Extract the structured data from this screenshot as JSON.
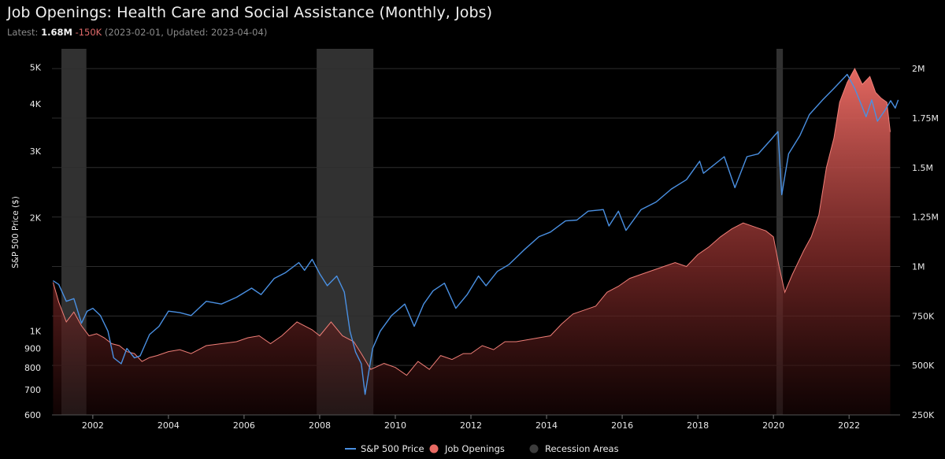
{
  "header": {
    "title": "Job Openings: Health Care and Social Assistance (Monthly, Jobs)",
    "latest_prefix": "Latest: ",
    "latest_value": "1.68M",
    "latest_change": "-150K",
    "latest_dates": "(2023-02-01, Updated: 2023-04-04)"
  },
  "colors": {
    "background": "#000000",
    "sp500_line": "#4a90e2",
    "job_openings_fill_top": "#e86a63",
    "job_openings_line": "#f07f78",
    "recession": "#3a3a3a",
    "grid": "#2e2e2e"
  },
  "chart_data": {
    "type": "line",
    "title": "Job Openings: Health Care and Social Assistance (Monthly, Jobs)",
    "x_ticks": [
      "2002",
      "2004",
      "2006",
      "2008",
      "2010",
      "2012",
      "2014",
      "2016",
      "2018",
      "2020",
      "2022"
    ],
    "xlim": [
      2000.92,
      2023.35
    ],
    "left_axis": {
      "label": "S&P 500 Price ($)",
      "scale": "log",
      "ylim": [
        600,
        5600
      ],
      "ticks": [
        600,
        700,
        800,
        900,
        1000,
        2000,
        3000,
        4000,
        5000
      ],
      "tick_labels": [
        "600",
        "700",
        "800",
        "900",
        "1K",
        "2K",
        "3K",
        "4K",
        "5K"
      ]
    },
    "right_axis": {
      "label": "",
      "scale": "linear",
      "ylim": [
        250000,
        2100000
      ],
      "ticks": [
        250000,
        500000,
        750000,
        1000000,
        1250000,
        1500000,
        1750000,
        2000000
      ],
      "tick_labels": [
        "250K",
        "500K",
        "750K",
        "1M",
        "1.25M",
        "1.5M",
        "1.75M",
        "2M"
      ]
    },
    "recessions": [
      [
        2001.17,
        2001.83
      ],
      [
        2007.92,
        2009.42
      ],
      [
        2020.08,
        2020.25
      ]
    ],
    "series": [
      {
        "name": "S&P 500 Price",
        "type": "line",
        "axis": "left",
        "points": [
          [
            2000.95,
            1360
          ],
          [
            2001.1,
            1330
          ],
          [
            2001.3,
            1200
          ],
          [
            2001.5,
            1220
          ],
          [
            2001.7,
            1050
          ],
          [
            2001.85,
            1130
          ],
          [
            2002.0,
            1150
          ],
          [
            2002.2,
            1100
          ],
          [
            2002.4,
            1000
          ],
          [
            2002.55,
            850
          ],
          [
            2002.75,
            820
          ],
          [
            2002.9,
            900
          ],
          [
            2003.1,
            850
          ],
          [
            2003.25,
            860
          ],
          [
            2003.5,
            980
          ],
          [
            2003.75,
            1030
          ],
          [
            2004.0,
            1130
          ],
          [
            2004.3,
            1120
          ],
          [
            2004.6,
            1100
          ],
          [
            2005.0,
            1200
          ],
          [
            2005.4,
            1180
          ],
          [
            2005.8,
            1230
          ],
          [
            2006.2,
            1300
          ],
          [
            2006.45,
            1250
          ],
          [
            2006.8,
            1380
          ],
          [
            2007.1,
            1430
          ],
          [
            2007.45,
            1520
          ],
          [
            2007.6,
            1450
          ],
          [
            2007.8,
            1550
          ],
          [
            2008.0,
            1420
          ],
          [
            2008.2,
            1320
          ],
          [
            2008.45,
            1400
          ],
          [
            2008.65,
            1270
          ],
          [
            2008.8,
            1000
          ],
          [
            2008.95,
            880
          ],
          [
            2009.1,
            820
          ],
          [
            2009.2,
            680
          ],
          [
            2009.4,
            900
          ],
          [
            2009.6,
            1000
          ],
          [
            2009.9,
            1100
          ],
          [
            2010.25,
            1180
          ],
          [
            2010.5,
            1030
          ],
          [
            2010.75,
            1180
          ],
          [
            2011.0,
            1280
          ],
          [
            2011.3,
            1340
          ],
          [
            2011.6,
            1150
          ],
          [
            2011.9,
            1250
          ],
          [
            2012.2,
            1400
          ],
          [
            2012.4,
            1320
          ],
          [
            2012.7,
            1440
          ],
          [
            2013.0,
            1500
          ],
          [
            2013.4,
            1640
          ],
          [
            2013.8,
            1780
          ],
          [
            2014.1,
            1830
          ],
          [
            2014.5,
            1960
          ],
          [
            2014.8,
            1970
          ],
          [
            2015.1,
            2080
          ],
          [
            2015.5,
            2100
          ],
          [
            2015.65,
            1900
          ],
          [
            2015.9,
            2080
          ],
          [
            2016.1,
            1850
          ],
          [
            2016.5,
            2100
          ],
          [
            2016.9,
            2200
          ],
          [
            2017.3,
            2380
          ],
          [
            2017.7,
            2520
          ],
          [
            2018.05,
            2820
          ],
          [
            2018.15,
            2620
          ],
          [
            2018.7,
            2900
          ],
          [
            2018.98,
            2400
          ],
          [
            2019.3,
            2900
          ],
          [
            2019.6,
            2950
          ],
          [
            2019.95,
            3230
          ],
          [
            2020.12,
            3380
          ],
          [
            2020.22,
            2300
          ],
          [
            2020.4,
            2950
          ],
          [
            2020.7,
            3300
          ],
          [
            2020.95,
            3750
          ],
          [
            2021.3,
            4100
          ],
          [
            2021.6,
            4400
          ],
          [
            2021.95,
            4790
          ],
          [
            2022.15,
            4400
          ],
          [
            2022.45,
            3700
          ],
          [
            2022.6,
            4100
          ],
          [
            2022.75,
            3600
          ],
          [
            2022.95,
            3850
          ],
          [
            2023.1,
            4080
          ],
          [
            2023.22,
            3900
          ],
          [
            2023.3,
            4100
          ]
        ]
      },
      {
        "name": "Job Openings",
        "type": "area",
        "axis": "right",
        "points": [
          [
            2000.95,
            920000
          ],
          [
            2001.1,
            820000
          ],
          [
            2001.3,
            720000
          ],
          [
            2001.5,
            770000
          ],
          [
            2001.7,
            700000
          ],
          [
            2001.9,
            650000
          ],
          [
            2002.1,
            660000
          ],
          [
            2002.3,
            640000
          ],
          [
            2002.5,
            610000
          ],
          [
            2002.7,
            600000
          ],
          [
            2002.9,
            570000
          ],
          [
            2003.1,
            560000
          ],
          [
            2003.3,
            520000
          ],
          [
            2003.5,
            540000
          ],
          [
            2003.7,
            550000
          ],
          [
            2004.0,
            570000
          ],
          [
            2004.3,
            580000
          ],
          [
            2004.6,
            560000
          ],
          [
            2005.0,
            600000
          ],
          [
            2005.4,
            610000
          ],
          [
            2005.8,
            620000
          ],
          [
            2006.1,
            640000
          ],
          [
            2006.4,
            650000
          ],
          [
            2006.7,
            610000
          ],
          [
            2007.0,
            650000
          ],
          [
            2007.4,
            720000
          ],
          [
            2007.8,
            680000
          ],
          [
            2008.0,
            650000
          ],
          [
            2008.3,
            720000
          ],
          [
            2008.6,
            650000
          ],
          [
            2008.9,
            620000
          ],
          [
            2009.1,
            560000
          ],
          [
            2009.35,
            480000
          ],
          [
            2009.7,
            510000
          ],
          [
            2010.0,
            490000
          ],
          [
            2010.3,
            450000
          ],
          [
            2010.6,
            520000
          ],
          [
            2010.9,
            480000
          ],
          [
            2011.2,
            550000
          ],
          [
            2011.5,
            530000
          ],
          [
            2011.8,
            560000
          ],
          [
            2012.0,
            560000
          ],
          [
            2012.3,
            600000
          ],
          [
            2012.6,
            580000
          ],
          [
            2012.9,
            620000
          ],
          [
            2013.2,
            620000
          ],
          [
            2013.5,
            630000
          ],
          [
            2013.8,
            640000
          ],
          [
            2014.1,
            650000
          ],
          [
            2014.4,
            710000
          ],
          [
            2014.7,
            760000
          ],
          [
            2015.0,
            780000
          ],
          [
            2015.3,
            800000
          ],
          [
            2015.6,
            870000
          ],
          [
            2015.9,
            900000
          ],
          [
            2016.2,
            940000
          ],
          [
            2016.5,
            960000
          ],
          [
            2016.8,
            980000
          ],
          [
            2017.1,
            1000000
          ],
          [
            2017.4,
            1020000
          ],
          [
            2017.7,
            1000000
          ],
          [
            2018.0,
            1060000
          ],
          [
            2018.3,
            1100000
          ],
          [
            2018.6,
            1150000
          ],
          [
            2018.9,
            1190000
          ],
          [
            2019.2,
            1220000
          ],
          [
            2019.5,
            1200000
          ],
          [
            2019.8,
            1180000
          ],
          [
            2020.0,
            1150000
          ],
          [
            2020.15,
            1000000
          ],
          [
            2020.3,
            870000
          ],
          [
            2020.5,
            960000
          ],
          [
            2020.8,
            1080000
          ],
          [
            2021.0,
            1150000
          ],
          [
            2021.2,
            1260000
          ],
          [
            2021.4,
            1500000
          ],
          [
            2021.6,
            1650000
          ],
          [
            2021.75,
            1830000
          ],
          [
            2021.95,
            1930000
          ],
          [
            2022.15,
            2000000
          ],
          [
            2022.35,
            1920000
          ],
          [
            2022.55,
            1960000
          ],
          [
            2022.7,
            1880000
          ],
          [
            2022.85,
            1850000
          ],
          [
            2023.0,
            1830000
          ],
          [
            2023.09,
            1680000
          ]
        ]
      }
    ],
    "legend": {
      "position": "bottom-center",
      "items": [
        {
          "label": "S&P 500 Price",
          "marker": "line"
        },
        {
          "label": "Job Openings",
          "marker": "circle"
        },
        {
          "label": "Recession Areas",
          "marker": "circle"
        }
      ]
    }
  }
}
